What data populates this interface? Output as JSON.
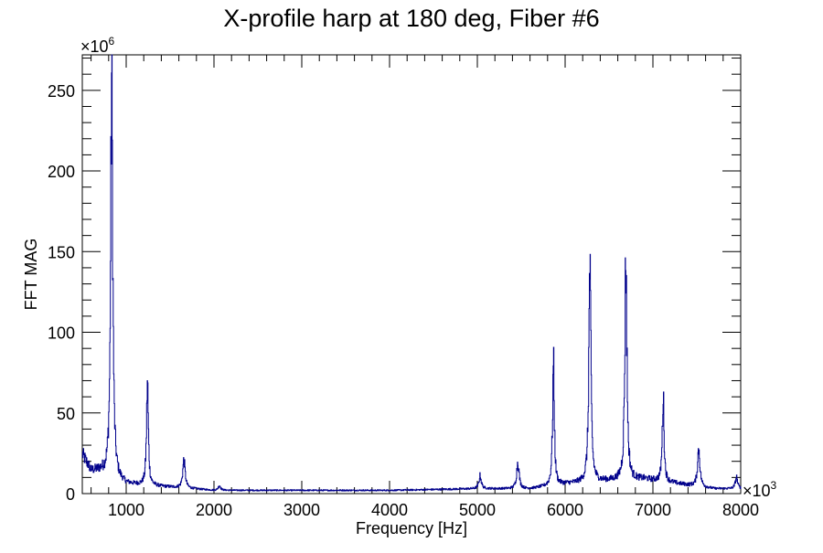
{
  "chart_data": {
    "type": "line",
    "title": "X-profile harp at 180 deg, Fiber #6",
    "xlabel": "Frequency [Hz]",
    "ylabel": "FFT MAG",
    "x_multiplier": "×10",
    "x_multiplier_exp": "3",
    "y_multiplier": "×10",
    "y_multiplier_exp": "6",
    "xlim": [
      500,
      8000
    ],
    "ylim": [
      0,
      272
    ],
    "x_ticks": [
      1000,
      2000,
      3000,
      4000,
      5000,
      6000,
      7000,
      8000
    ],
    "y_ticks": [
      0,
      50,
      100,
      150,
      200,
      250
    ],
    "line_color": "#00008b",
    "grid": false,
    "peaks": [
      {
        "x": 833,
        "y": 260
      },
      {
        "x": 1240,
        "y": 69
      },
      {
        "x": 1656,
        "y": 21
      },
      {
        "x": 2060,
        "y": 5
      },
      {
        "x": 5030,
        "y": 11
      },
      {
        "x": 5460,
        "y": 20
      },
      {
        "x": 5865,
        "y": 80
      },
      {
        "x": 6280,
        "y": 141
      },
      {
        "x": 6690,
        "y": 148
      },
      {
        "x": 7115,
        "y": 61
      },
      {
        "x": 7520,
        "y": 28
      },
      {
        "x": 7950,
        "y": 10
      }
    ],
    "baseline": {
      "x": [
        500,
        600,
        700,
        1000,
        1500,
        2000,
        3000,
        4000,
        5000,
        5600,
        6000,
        6500,
        6900,
        7300,
        7700,
        8000
      ],
      "y": [
        24,
        14,
        14,
        6,
        4,
        2,
        2,
        2,
        3,
        3,
        6,
        8,
        9,
        6,
        3,
        3
      ]
    }
  }
}
